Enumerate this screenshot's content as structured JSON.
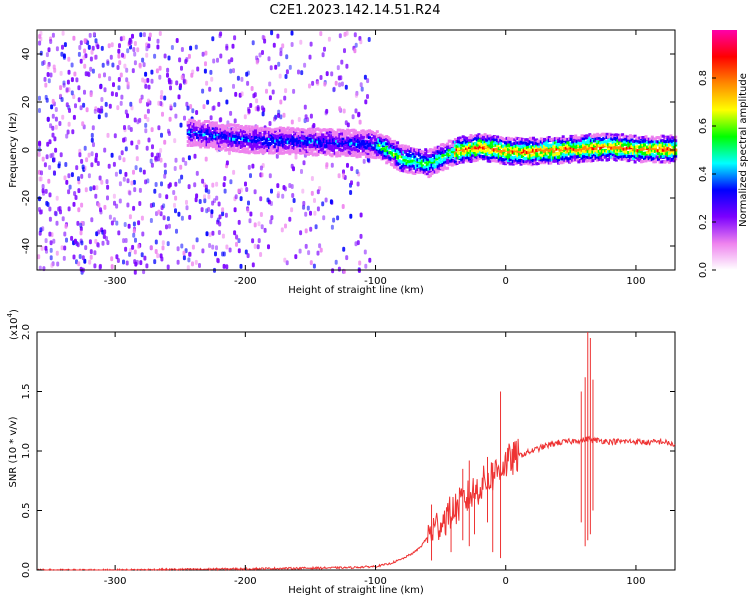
{
  "title": "C2E1.2023.142.14.51.R24",
  "chart_data": [
    {
      "type": "heatmap",
      "xlabel": "Height of straight line (km)",
      "ylabel": "Frequency (Hz)",
      "xlim": [
        -360,
        130
      ],
      "ylim": [
        -50,
        50
      ],
      "xticks": [
        -300,
        -200,
        -100,
        0,
        100
      ],
      "yticks": [
        -40,
        -20,
        0,
        20,
        40
      ],
      "colorbar": {
        "label": "Normalized spectral amplitude",
        "range": [
          0.0,
          1.0
        ],
        "ticks": [
          "0.0",
          "0.2",
          "0.4",
          "0.6",
          "0.8"
        ],
        "colors": [
          "#ffffff",
          "#ee82ee",
          "#7b00ff",
          "#0000ff",
          "#00ffff",
          "#00ff00",
          "#ffff00",
          "#ff8800",
          "#ff0000",
          "#ff00aa"
        ]
      },
      "ridge": {
        "description_free_points_x": [
          -245,
          -200,
          -150,
          -100,
          -80,
          -60,
          -40,
          -20,
          0,
          20,
          50,
          80,
          100,
          130
        ],
        "freq_center_y": [
          8,
          5,
          4,
          3,
          -3,
          -5,
          0,
          2,
          0,
          0,
          1,
          2,
          1,
          1
        ]
      },
      "noise_extent_x": [
        -360,
        -105
      ],
      "grid": false
    },
    {
      "type": "line",
      "xlabel": "Height of straight line (km)",
      "ylabel": "SNR (10 * v/v)",
      "exponent_label": "(x10",
      "exponent_power": "4",
      "exponent_close": ")",
      "xlim": [
        -360,
        130
      ],
      "ylim": [
        0.0,
        2.0
      ],
      "xticks": [
        -300,
        -200,
        -100,
        0,
        100
      ],
      "yticks": [
        "0.0",
        "0.5",
        "1.0",
        "1.5",
        "2.0"
      ],
      "color": "#ee3333",
      "x": [
        -360,
        -300,
        -200,
        -120,
        -100,
        -90,
        -80,
        -70,
        -65,
        -60,
        -55,
        -50,
        -45,
        -40,
        -35,
        -30,
        -25,
        -20,
        -15,
        -10,
        -5,
        0,
        10,
        20,
        30,
        40,
        50,
        55,
        60,
        62,
        64,
        66,
        70,
        80,
        90,
        100,
        110,
        120,
        130
      ],
      "y": [
        0.0,
        0.0,
        0.01,
        0.02,
        0.03,
        0.05,
        0.09,
        0.15,
        0.2,
        0.28,
        0.35,
        0.4,
        0.45,
        0.5,
        0.55,
        0.6,
        0.65,
        0.7,
        0.75,
        0.8,
        0.85,
        0.9,
        0.96,
        1.0,
        1.04,
        1.07,
        1.08,
        1.09,
        1.09,
        1.1,
        1.1,
        1.09,
        1.09,
        1.08,
        1.08,
        1.08,
        1.07,
        1.08,
        1.05
      ],
      "spikes": [
        {
          "x": -57,
          "y": 0.55,
          "low": 0.08
        },
        {
          "x": -42,
          "y": 0.45,
          "low": 0.15
        },
        {
          "x": -33,
          "y": 0.85,
          "low": 0.25
        },
        {
          "x": -28,
          "y": 0.92,
          "low": 0.2
        },
        {
          "x": -24,
          "y": 0.62,
          "low": 0.3
        },
        {
          "x": -14,
          "y": 0.95,
          "low": 0.4
        },
        {
          "x": -10,
          "y": 0.9,
          "low": 0.15
        },
        {
          "x": -4,
          "y": 1.5,
          "low": 0.1
        },
        {
          "x": 58,
          "y": 1.5,
          "low": 0.4
        },
        {
          "x": 61,
          "y": 1.62,
          "low": 0.2
        },
        {
          "x": 63,
          "y": 2.0,
          "low": 0.25
        },
        {
          "x": 65,
          "y": 1.95,
          "low": 0.3
        },
        {
          "x": 67,
          "y": 1.6,
          "low": 0.5
        }
      ],
      "grid": false
    }
  ]
}
